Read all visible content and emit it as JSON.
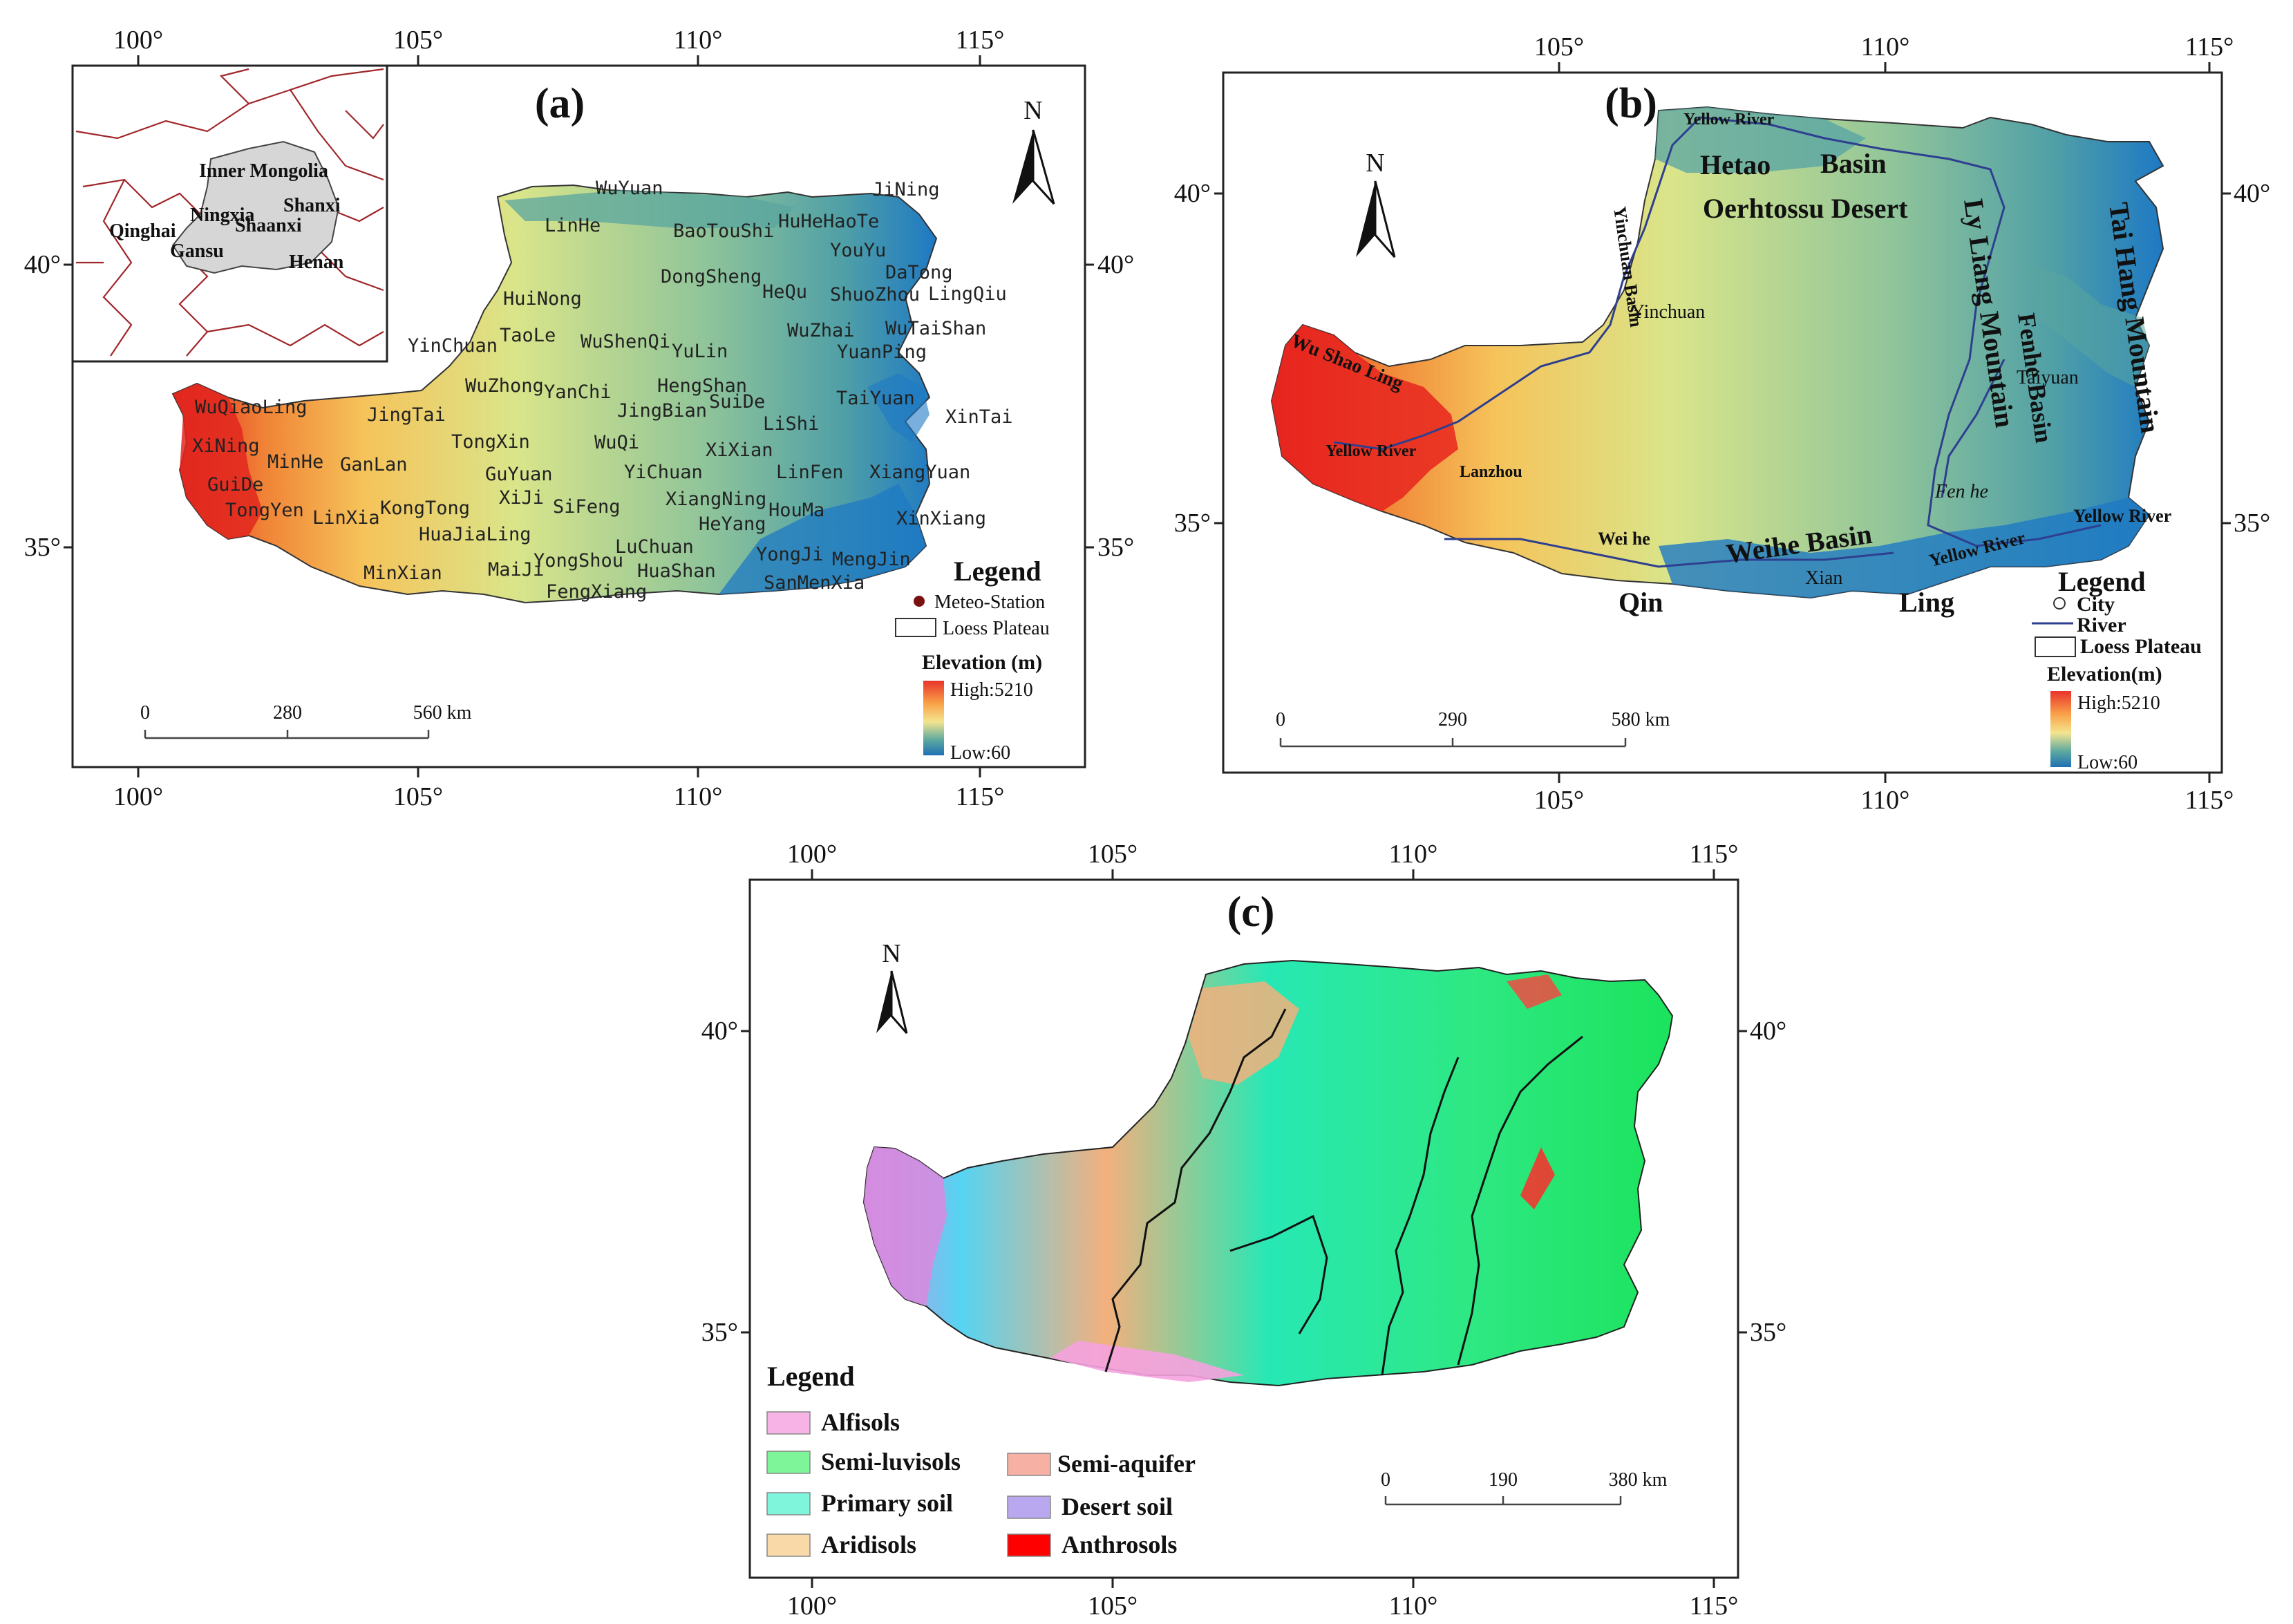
{
  "panels": [
    {
      "id": "a",
      "title": "(a)",
      "lon_ticks": [
        "100°",
        "105°",
        "110°",
        "115°"
      ],
      "lat_ticks": [
        "40°",
        "35°"
      ],
      "north": "N",
      "inset_labels": [
        "Inner Mongolia",
        "Ningxia",
        "Shanxi",
        "Shaanxi",
        "Qinghai",
        "Gansu",
        "Henan"
      ],
      "stations": [
        "WuYuan",
        "JiNing",
        "LinHe",
        "BaoTouShi",
        "HuHeHaoTe",
        "YouYu",
        "DaTong",
        "DongSheng",
        "HeQu",
        "ShuoZhou",
        "LingQiu",
        "HuiNong",
        "TaoLe",
        "WuShenQi",
        "YuLin",
        "WuZhai",
        "WuTaiShan",
        "YinChuan",
        "YuanPing",
        "WuQiaoLing",
        "JingTai",
        "WuZhong",
        "YanChi",
        "HengShan",
        "JingBian",
        "SuiDe",
        "TaiYuan",
        "XinTai",
        "XiNing",
        "MinHe",
        "TongXin",
        "WuQi",
        "LiShi",
        "XiXian",
        "GanLan",
        "GuiDe",
        "GuYuan",
        "YiChuan",
        "LinFen",
        "XiangYuan",
        "TongYen",
        "LinXia",
        "KongTong",
        "XiJi",
        "SiFeng",
        "XiangNing",
        "HouMa",
        "HuaJiaLing",
        "HeYang",
        "XinXiang",
        "MinXian",
        "MaiJi",
        "YongShou",
        "LuChuan",
        "HuaShan",
        "YongJi",
        "MengJin",
        "FengXiang",
        "SanMenXia"
      ],
      "legend": {
        "title": "Legend",
        "station": "Meteo-Station",
        "region": "Loess Plateau",
        "elev_title": "Elevation (m)",
        "high": "High:5210",
        "low": "Low:60"
      },
      "scale": [
        "0",
        "280",
        "560 km"
      ]
    },
    {
      "id": "b",
      "title": "(b)",
      "lon_ticks": [
        "105°",
        "110°",
        "115°"
      ],
      "lat_ticks": [
        "40°",
        "35°"
      ],
      "north": "N",
      "features": {
        "yellow_river_top": "Yellow River",
        "hetao": "Hetao",
        "basin": "Basin",
        "desert": "Oerhtossu Desert",
        "yinchuan_basin": "Yinchuan Basin",
        "yinchuan": "Yinchuan",
        "lvliang": "Ly Liang Mountain",
        "fenhe": "Fenhe Basin",
        "taihang": "Tai Hang Mountain",
        "taiyuan": "Taiyuan",
        "wushaoling": "Wu Shao Ling",
        "yellow_river_w": "Yellow River",
        "lanzhou": "Lanzhou",
        "fenhe_river": "Fen he",
        "weihe_river": "Wei he",
        "weihe_basin": "Weihe  Basin",
        "yellow_river_e": "Yellow River",
        "yellow_river_se": "Yellow River",
        "xian": "Xian",
        "qin": "Qin",
        "ling": "Ling"
      },
      "legend": {
        "title": "Legend",
        "city": "City",
        "river": "River",
        "region": "Loess Plateau",
        "elev_title": "Elevation(m)",
        "high": "High:5210",
        "low": "Low:60"
      },
      "scale": [
        "0",
        "290",
        "580 km"
      ]
    },
    {
      "id": "c",
      "title": "(c)",
      "lon_ticks": [
        "100°",
        "105°",
        "110°",
        "115°"
      ],
      "lat_ticks": [
        "40°",
        "35°"
      ],
      "north": "N",
      "legend": {
        "title": "Legend",
        "items": [
          {
            "label": "Alfisols",
            "color": "#f7b3e6"
          },
          {
            "label": "Semi-luvisols",
            "color": "#7ff59a"
          },
          {
            "label": "Semi-aquifer",
            "color": "#f6b0a4"
          },
          {
            "label": "Primary soil",
            "color": "#7ff5dc"
          },
          {
            "label": "Desert soil",
            "color": "#b9a8f0"
          },
          {
            "label": "Aridisols",
            "color": "#f9d9a8"
          },
          {
            "label": "Anthrosols",
            "color": "#ff0000"
          }
        ]
      },
      "scale": [
        "0",
        "190",
        "380  km"
      ]
    }
  ]
}
